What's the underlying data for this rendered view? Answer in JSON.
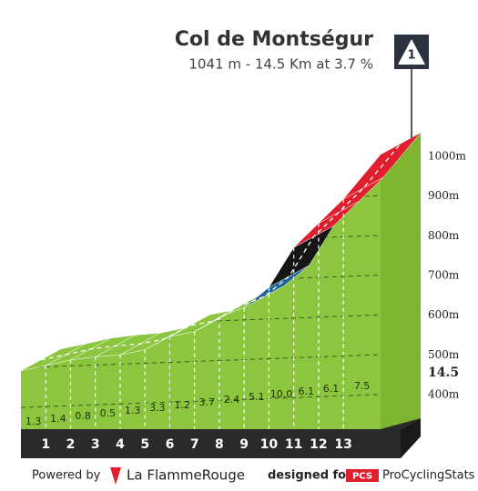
{
  "chart_data": {
    "type": "climb-profile",
    "title": "Col de Montségur",
    "subtitle": "1041 m - 14.5 Km at 3.7 %",
    "category_badge": "1",
    "elevation": {
      "x": [
        0,
        1,
        2,
        3,
        4,
        5,
        6,
        7,
        8,
        9,
        10,
        11,
        12,
        13,
        14.5
      ],
      "values": [
        497,
        510,
        524,
        532,
        537,
        550,
        583,
        595,
        632,
        656,
        707,
        807,
        868,
        929,
        1041
      ]
    },
    "gradients": {
      "values": [
        1.3,
        1.4,
        0.8,
        0.5,
        1.3,
        3.3,
        1.2,
        3.7,
        2.4,
        5.1,
        10,
        6.1,
        6.1,
        7.5
      ],
      "value_labels": [
        "1.3",
        "1.4",
        "0.8",
        "0.5",
        "1.3",
        "3.3",
        "1.2",
        "3.7",
        "2.4",
        "5.1",
        "10.0",
        "6.1",
        "6.1",
        "7.5"
      ],
      "colors": [
        "#8cc63f",
        "#8cc63f",
        "#8cc63f",
        "#8cc63f",
        "#8cc63f",
        "#8cc63f",
        "#8cc63f",
        "#8cc63f",
        "#8cc63f",
        "#1f6697",
        "#151515",
        "#e01e2d",
        "#e01e2d",
        "#e01e2d"
      ]
    },
    "xlim": [
      0,
      14.5
    ],
    "xticks": [
      1,
      2,
      3,
      4,
      5,
      6,
      7,
      8,
      9,
      10,
      11,
      12,
      13,
      14.5
    ],
    "ylim": [
      350,
      1050
    ],
    "yticks": [
      {
        "value": 400,
        "label": "400m"
      },
      {
        "value": 500,
        "label": "500m"
      },
      {
        "value": 600,
        "label": "600m"
      },
      {
        "value": 700,
        "label": "700m"
      },
      {
        "value": 800,
        "label": "800m"
      },
      {
        "value": 900,
        "label": "900m"
      },
      {
        "value": 1000,
        "label": "1000m"
      }
    ],
    "grid": true,
    "footer": {
      "powered": "Powered by",
      "brand": "La FlammeRouge",
      "designed": "designed for",
      "pcs": "PCS",
      "pcs_name": "ProCyclingStats"
    }
  }
}
